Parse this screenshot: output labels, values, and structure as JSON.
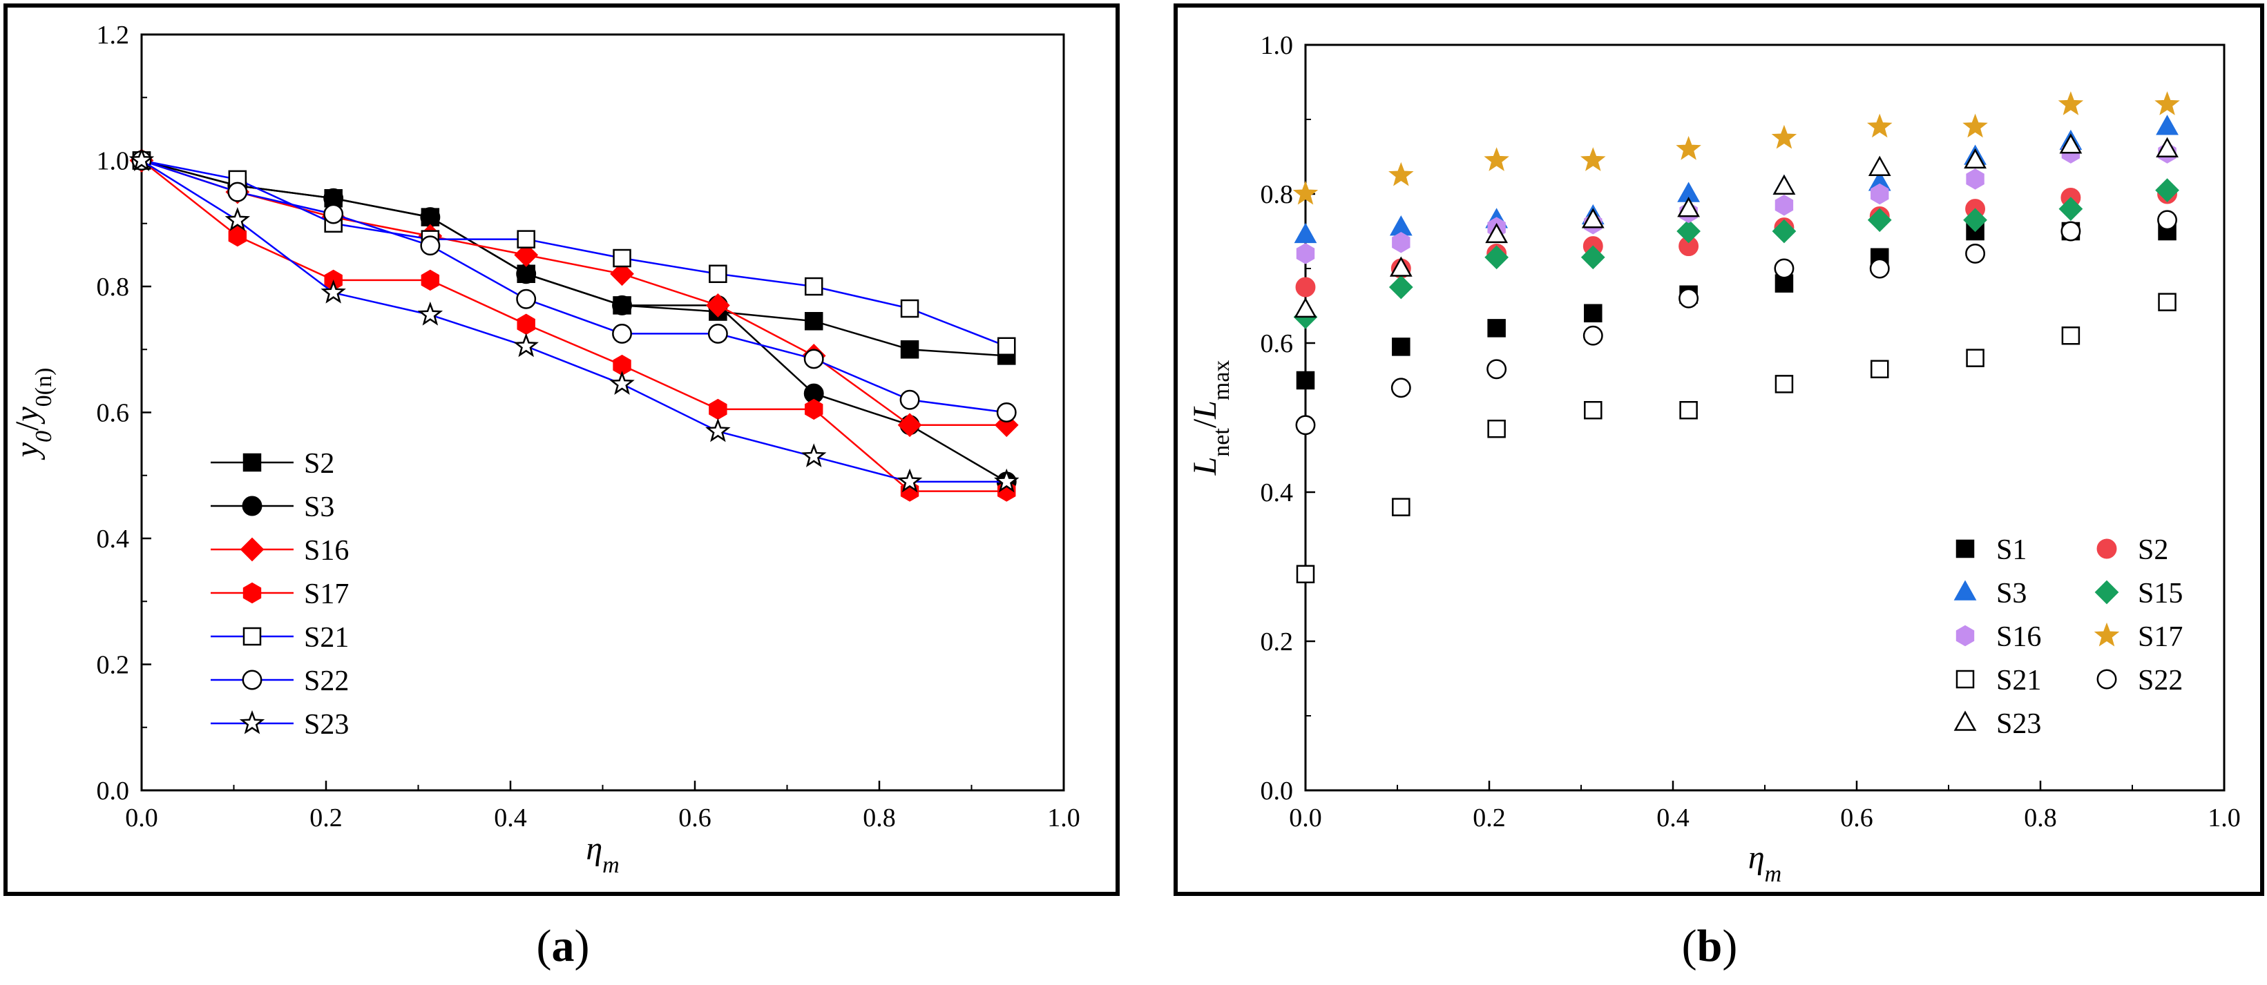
{
  "chart_data": [
    {
      "type": "line",
      "panel_label": "a",
      "xlabel": "η",
      "xlabel_sub": "m",
      "ylabel_parts": [
        "y",
        "0",
        "/",
        "y",
        "0(n)"
      ],
      "xlim": [
        0.0,
        1.0
      ],
      "ylim": [
        0.0,
        1.2
      ],
      "xticks": [
        0.0,
        0.2,
        0.4,
        0.6,
        0.8,
        1.0
      ],
      "xtick_labels": [
        "0.0",
        "0.2",
        "0.4",
        "0.6",
        "0.8",
        "1.0"
      ],
      "yticks": [
        0.0,
        0.2,
        0.4,
        0.6,
        0.8,
        1.0,
        1.2
      ],
      "ytick_labels": [
        "0.0",
        "0.2",
        "0.4",
        "0.6",
        "0.8",
        "1.0",
        "1.2"
      ],
      "grid": false,
      "legend_position": "lower-left",
      "x": [
        0.0,
        0.104,
        0.208,
        0.313,
        0.417,
        0.521,
        0.625,
        0.729,
        0.833,
        0.938
      ],
      "series": [
        {
          "name": "S2",
          "marker": "square",
          "filled": true,
          "color": "#000000",
          "values": [
            1.0,
            0.96,
            0.94,
            0.91,
            0.82,
            0.77,
            0.76,
            0.745,
            0.7,
            0.69
          ]
        },
        {
          "name": "S3",
          "marker": "circle",
          "filled": true,
          "color": "#000000",
          "values": [
            1.0,
            0.96,
            0.94,
            0.91,
            0.82,
            0.77,
            0.77,
            0.63,
            0.58,
            0.49
          ]
        },
        {
          "name": "S16",
          "marker": "diamond",
          "filled": true,
          "color": "#ff0000",
          "values": [
            1.0,
            0.95,
            0.91,
            0.88,
            0.85,
            0.82,
            0.77,
            0.69,
            0.58,
            0.58
          ]
        },
        {
          "name": "S17",
          "marker": "hexagon",
          "filled": true,
          "color": "#ff0000",
          "values": [
            1.0,
            0.88,
            0.81,
            0.81,
            0.74,
            0.675,
            0.605,
            0.605,
            0.475,
            0.475
          ]
        },
        {
          "name": "S21",
          "marker": "square",
          "filled": false,
          "color": "#0000ff",
          "values": [
            1.0,
            0.97,
            0.9,
            0.875,
            0.875,
            0.845,
            0.82,
            0.8,
            0.765,
            0.705
          ]
        },
        {
          "name": "S22",
          "marker": "circle",
          "filled": false,
          "color": "#0000ff",
          "values": [
            1.0,
            0.95,
            0.915,
            0.865,
            0.78,
            0.725,
            0.725,
            0.685,
            0.62,
            0.6
          ]
        },
        {
          "name": "S23",
          "marker": "star",
          "filled": false,
          "color": "#0000ff",
          "values": [
            1.0,
            0.905,
            0.79,
            0.755,
            0.705,
            0.645,
            0.57,
            0.53,
            0.49,
            0.49
          ]
        }
      ]
    },
    {
      "type": "scatter",
      "panel_label": "b",
      "xlabel": "η",
      "xlabel_sub": "m",
      "ylabel_parts": [
        "L",
        "net",
        "/",
        "L",
        "max"
      ],
      "xlim": [
        0.0,
        1.0
      ],
      "ylim": [
        0.0,
        1.0
      ],
      "xticks": [
        0.0,
        0.2,
        0.4,
        0.6,
        0.8,
        1.0
      ],
      "xtick_labels": [
        "0.0",
        "0.2",
        "0.4",
        "0.6",
        "0.8",
        "1.0"
      ],
      "yticks": [
        0.0,
        0.2,
        0.4,
        0.6,
        0.8,
        1.0
      ],
      "ytick_labels": [
        "0.0",
        "0.2",
        "0.4",
        "0.6",
        "0.8",
        "1.0"
      ],
      "grid": false,
      "legend_position": "lower-right",
      "x": [
        0.0,
        0.104,
        0.208,
        0.313,
        0.417,
        0.521,
        0.625,
        0.729,
        0.833,
        0.938
      ],
      "series": [
        {
          "name": "S1",
          "marker": "square",
          "filled": true,
          "color": "#000000",
          "values": [
            0.55,
            0.595,
            0.62,
            0.64,
            0.665,
            0.68,
            0.715,
            0.75,
            0.75,
            0.75
          ]
        },
        {
          "name": "S2",
          "marker": "circle",
          "filled": true,
          "color": "#f0434b",
          "values": [
            0.675,
            0.7,
            0.72,
            0.73,
            0.73,
            0.755,
            0.77,
            0.78,
            0.795,
            0.8
          ]
        },
        {
          "name": "S3",
          "marker": "triangle",
          "filled": true,
          "color": "#1f6fe0",
          "values": [
            0.745,
            0.755,
            0.765,
            0.77,
            0.8,
            0.81,
            0.815,
            0.85,
            0.87,
            0.89
          ]
        },
        {
          "name": "S15",
          "marker": "diamond",
          "filled": true,
          "color": "#17a05d",
          "values": [
            0.635,
            0.675,
            0.715,
            0.715,
            0.75,
            0.75,
            0.765,
            0.765,
            0.78,
            0.805
          ]
        },
        {
          "name": "S16",
          "marker": "hexagon",
          "filled": true,
          "color": "#c48df0",
          "values": [
            0.72,
            0.735,
            0.755,
            0.76,
            0.775,
            0.785,
            0.8,
            0.82,
            0.855,
            0.855
          ]
        },
        {
          "name": "S17",
          "marker": "star",
          "filled": true,
          "color": "#e0a020",
          "values": [
            0.8,
            0.825,
            0.845,
            0.845,
            0.86,
            0.875,
            0.89,
            0.89,
            0.92,
            0.92
          ]
        },
        {
          "name": "S21",
          "marker": "square",
          "filled": false,
          "color": "#000000",
          "values": [
            0.29,
            0.38,
            0.485,
            0.51,
            0.51,
            0.545,
            0.565,
            0.58,
            0.61,
            0.655
          ]
        },
        {
          "name": "S22",
          "marker": "circle",
          "filled": false,
          "color": "#000000",
          "values": [
            0.49,
            0.54,
            0.565,
            0.61,
            0.66,
            0.7,
            0.7,
            0.72,
            0.75,
            0.765
          ]
        },
        {
          "name": "S23",
          "marker": "triangle",
          "filled": false,
          "color": "#000000",
          "values": [
            0.645,
            0.7,
            0.745,
            0.765,
            0.78,
            0.81,
            0.835,
            0.845,
            0.865,
            0.86
          ]
        }
      ]
    }
  ]
}
